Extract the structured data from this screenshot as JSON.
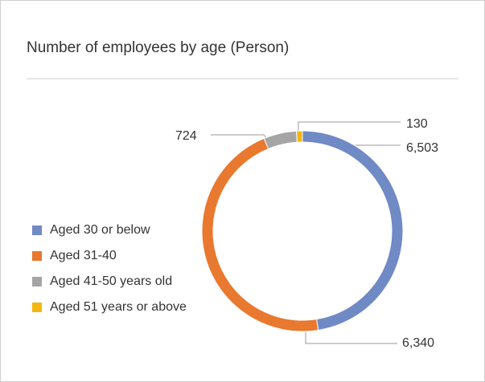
{
  "chart_data": {
    "type": "donut",
    "title": "Number of employees by age (Person)",
    "categories": [
      "Aged 30 or below",
      "Aged 31-40",
      "Aged 41-50 years old",
      "Aged 51 years or above"
    ],
    "values": [
      6503,
      6340,
      724,
      130
    ],
    "value_labels": [
      "6,503",
      "6,340",
      "724",
      "130"
    ],
    "colors": [
      "#6f8ac4",
      "#e8792f",
      "#a5a5a5",
      "#f5b70f"
    ],
    "legend": "left"
  }
}
